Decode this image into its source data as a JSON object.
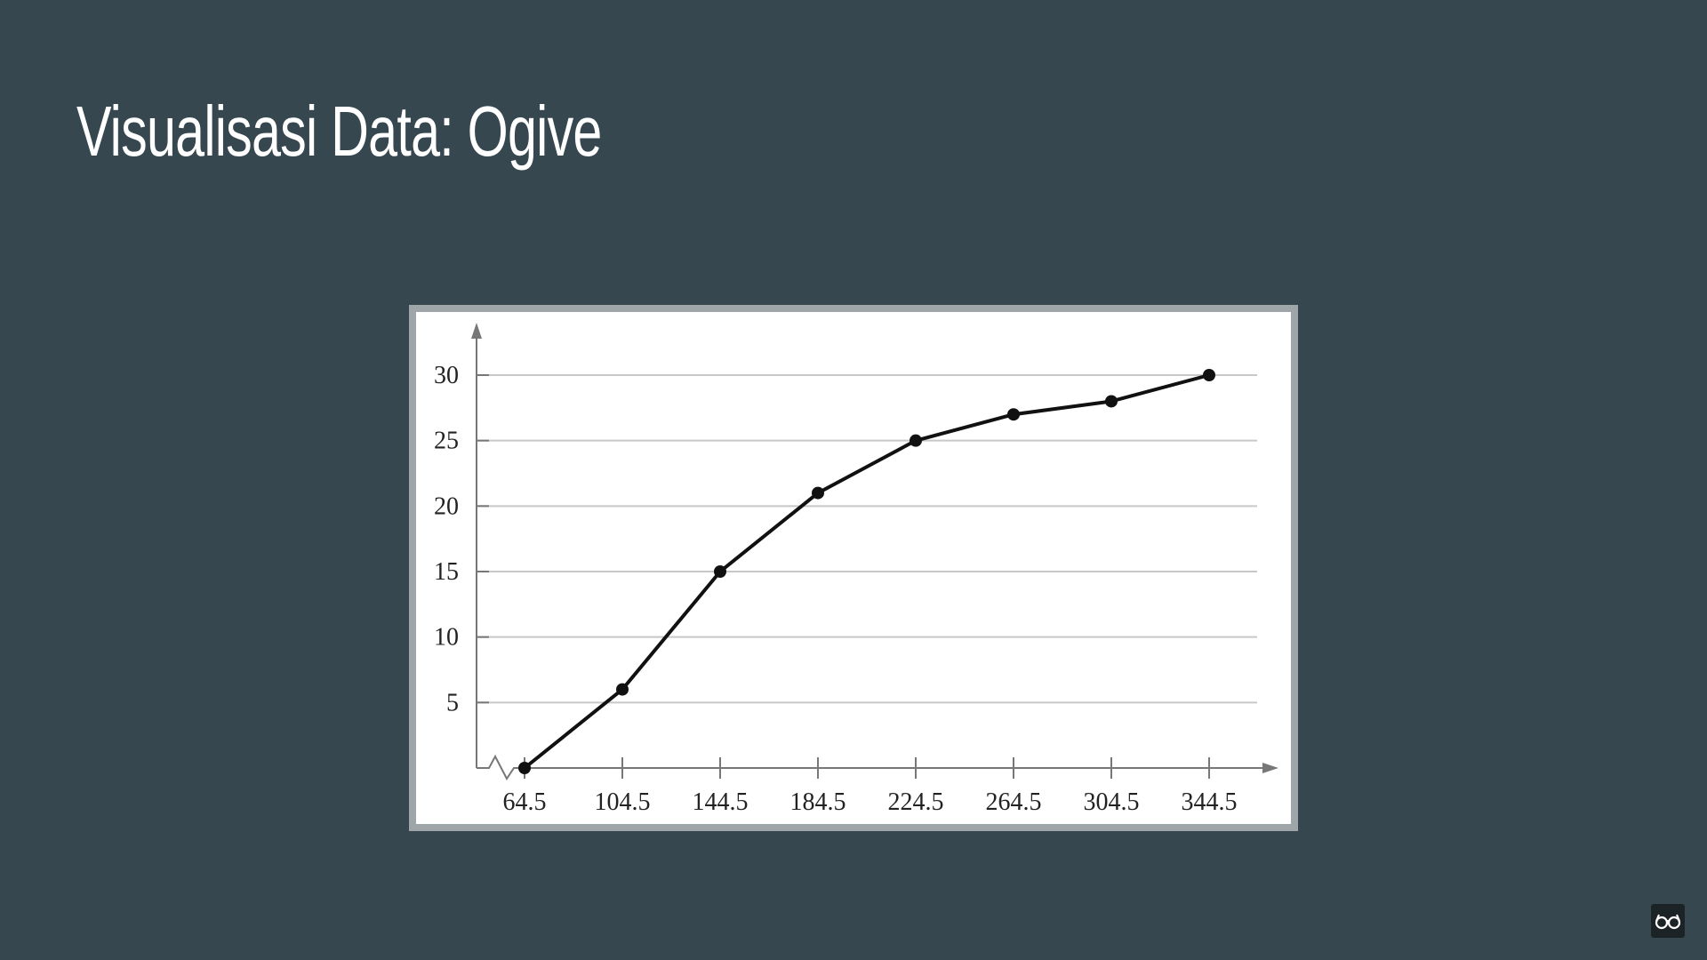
{
  "slide": {
    "title": "Visualisasi Data: Ogive",
    "background_color": "#36474f"
  },
  "chart_data": {
    "type": "line",
    "title": "",
    "xlabel": "",
    "ylabel": "",
    "x": [
      64.5,
      104.5,
      144.5,
      184.5,
      224.5,
      264.5,
      304.5,
      344.5
    ],
    "x_tick_labels": [
      "64.5",
      "104.5",
      "144.5",
      "184.5",
      "224.5",
      "264.5",
      "304.5",
      "344.5"
    ],
    "series": [
      {
        "values": [
          0,
          6,
          15,
          21,
          25,
          27,
          28,
          30
        ]
      }
    ],
    "y_ticks": [
      5,
      10,
      15,
      20,
      25,
      30
    ],
    "y_tick_labels": [
      "5",
      "10",
      "15",
      "20",
      "25",
      "30"
    ],
    "xlim": [
      44.5,
      364.5
    ],
    "ylim": [
      0,
      30
    ],
    "grid": true,
    "x_axis_break": true,
    "line_color": "#111111",
    "grid_color": "#c8c8c8",
    "axis_color": "#777777"
  },
  "icons": {
    "corner": "glasses-icon"
  }
}
